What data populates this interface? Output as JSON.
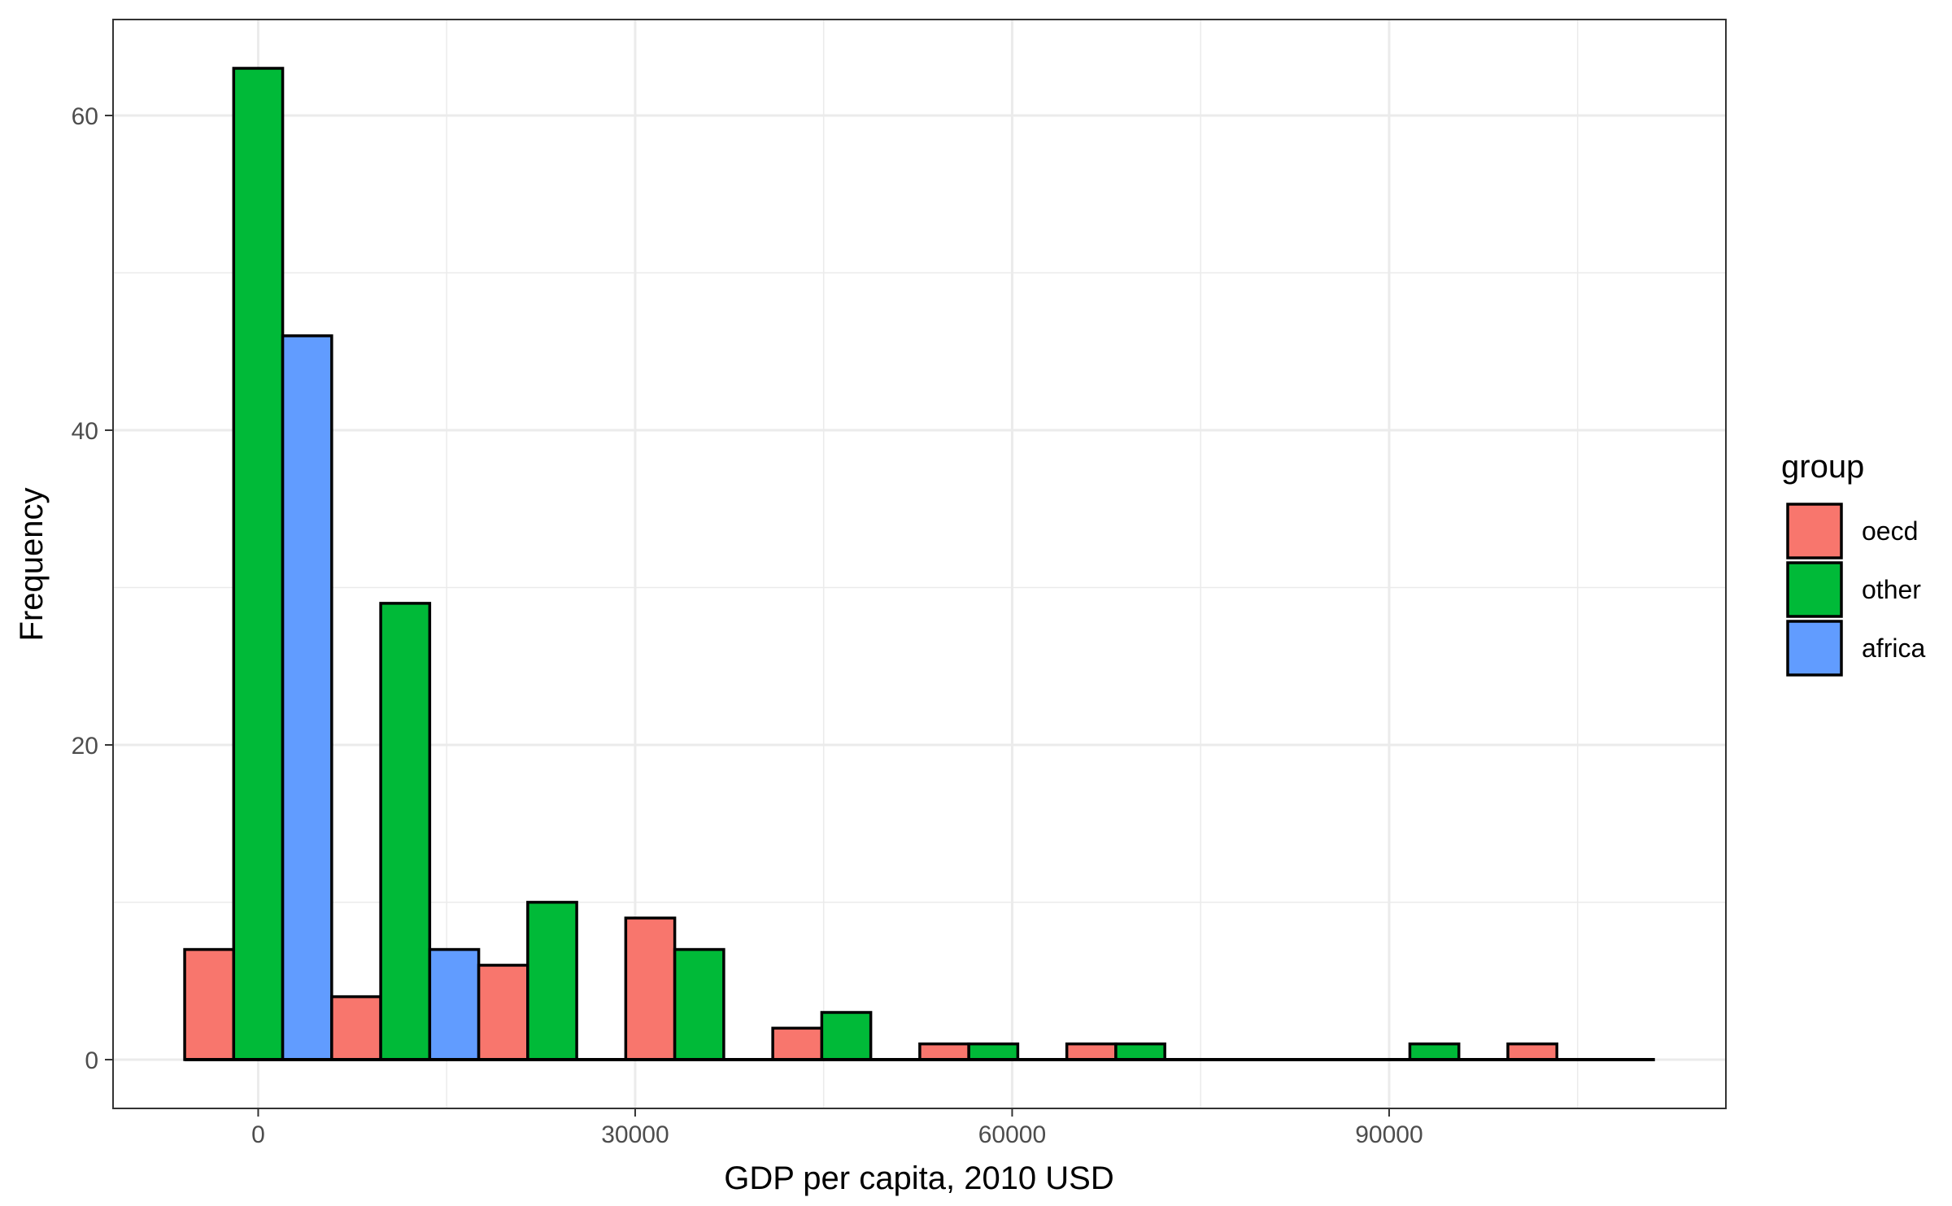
{
  "chart_data": {
    "type": "bar",
    "xlabel": "GDP per capita, 2010 USD",
    "ylabel": "Frequency",
    "xlim": [
      -11550,
      116800
    ],
    "ylim": [
      -3.1,
      66.1
    ],
    "x_ticks": [
      0,
      30000,
      60000,
      90000
    ],
    "x_tick_labels": [
      "0",
      "30000",
      "60000",
      "90000"
    ],
    "y_ticks": [
      0,
      20,
      40,
      60
    ],
    "y_tick_labels": [
      "0",
      "20",
      "40",
      "60"
    ],
    "grid": true,
    "bin_width": 11700,
    "x": [
      0,
      11700,
      23400,
      35100,
      46800,
      58500,
      70200,
      81900,
      93600,
      105300
    ],
    "series": [
      {
        "name": "oecd",
        "color": "#F8766D",
        "values": [
          7,
          4,
          6,
          9,
          2,
          1,
          1,
          0,
          0,
          1
        ]
      },
      {
        "name": "other",
        "color": "#00BA38",
        "values": [
          63,
          29,
          10,
          7,
          3,
          1,
          1,
          0,
          1,
          0
        ]
      },
      {
        "name": "africa",
        "color": "#619CFF",
        "values": [
          46,
          7,
          0,
          0,
          0,
          0,
          0,
          0,
          0,
          0
        ]
      }
    ],
    "legend": {
      "title": "group",
      "position": "right"
    }
  }
}
